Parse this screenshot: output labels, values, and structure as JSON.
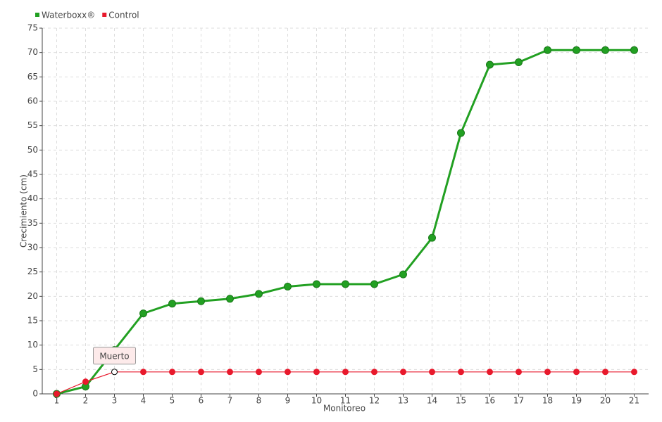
{
  "chart_data": {
    "type": "line",
    "x_label": "Monitoreo",
    "y_label": "Crecimiento (cm)",
    "categories": [
      "1",
      "2",
      "3",
      "4",
      "5",
      "6",
      "7",
      "8",
      "9",
      "10",
      "11",
      "12",
      "13",
      "14",
      "15",
      "16",
      "17",
      "18",
      "19",
      "20",
      "21"
    ],
    "series": [
      {
        "name": "Waterboxx®",
        "color": "#22a022",
        "values": [
          0,
          1.5,
          9,
          16.5,
          18.5,
          19,
          19.5,
          20.5,
          22,
          22.5,
          22.5,
          22.5,
          24.5,
          32,
          53.5,
          67.5,
          68,
          70.5,
          70.5,
          70.5,
          70.5
        ]
      },
      {
        "name": "Control",
        "color": "#e8192c",
        "values": [
          0,
          2.5,
          4.5,
          4.5,
          4.5,
          4.5,
          4.5,
          4.5,
          4.5,
          4.5,
          4.5,
          4.5,
          4.5,
          4.5,
          4.5,
          4.5,
          4.5,
          4.5,
          4.5,
          4.5,
          4.5
        ]
      }
    ],
    "annotations": [
      {
        "text": "Muerto",
        "series": 1,
        "x": "3"
      }
    ],
    "ylim": [
      0,
      75
    ],
    "yticks": [
      0,
      5,
      10,
      15,
      20,
      25,
      30,
      35,
      40,
      45,
      50,
      55,
      60,
      65,
      70,
      75
    ],
    "grid": true,
    "legend": "top-left"
  }
}
